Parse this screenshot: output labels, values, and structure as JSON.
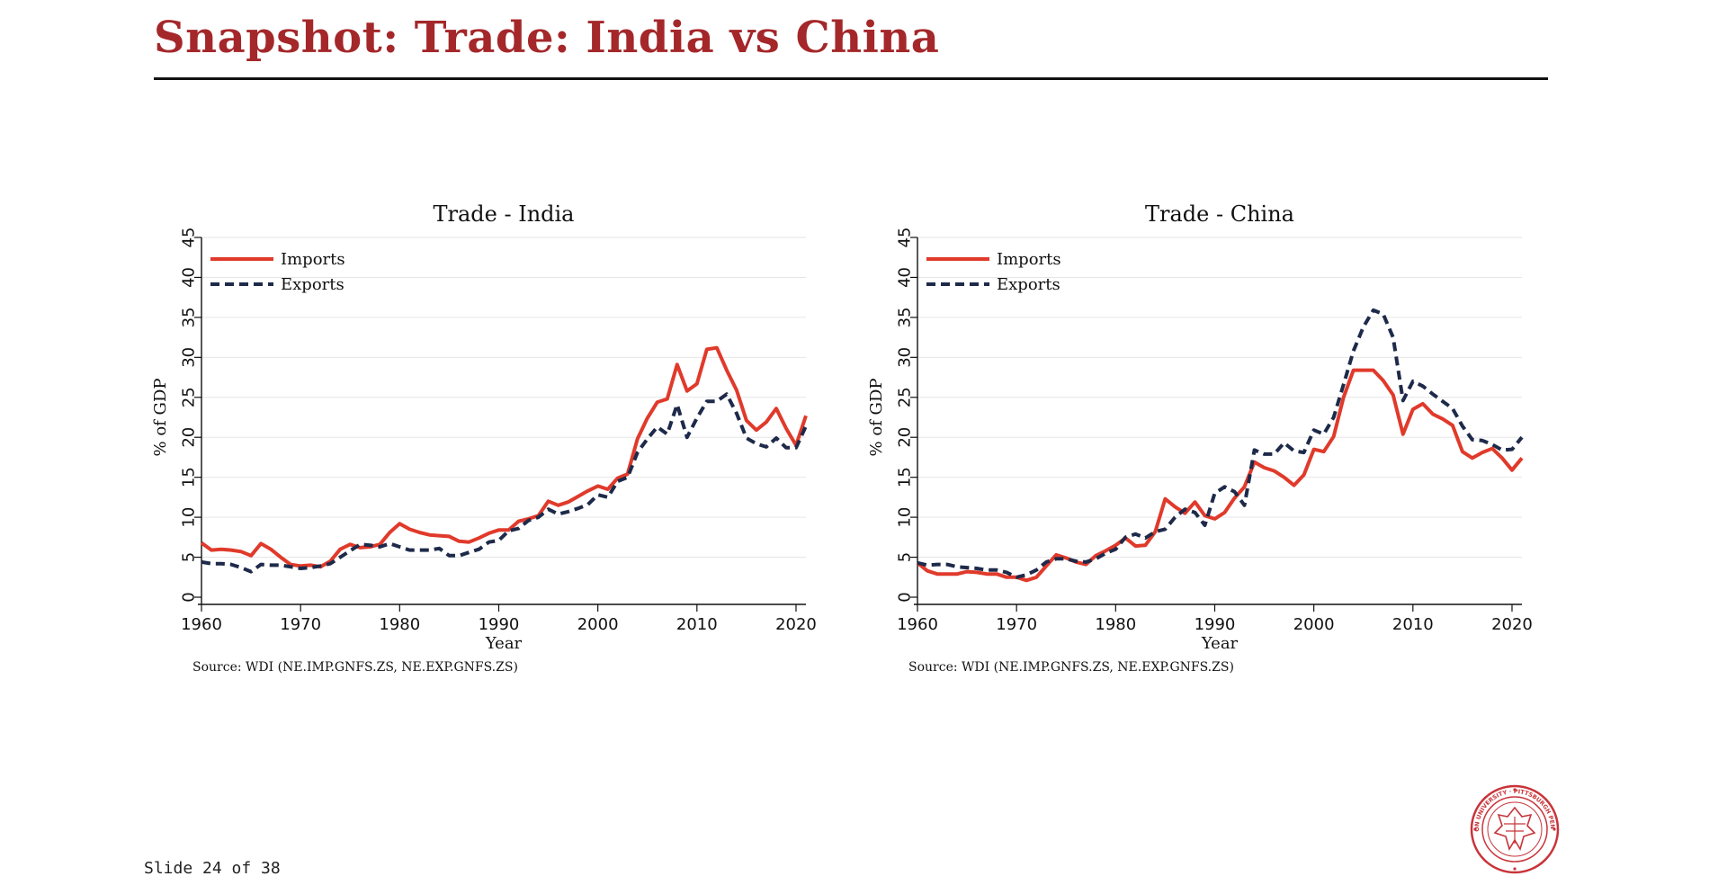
{
  "slide": {
    "title": "Snapshot: Trade: India vs China",
    "footer": "Slide 24 of 38"
  },
  "colors": {
    "title": "#a4272a",
    "imports": "#e03a2b",
    "exports": "#1e2a4a",
    "grid": "#e6e6e6",
    "seal": "#c8343a"
  },
  "seal": {
    "text": "CARNEGIE MELLON UNIVERSITY · PITTSBURGH PENNSYLVANIA 1900"
  },
  "chart_data": [
    {
      "type": "line",
      "title": "Trade - India",
      "xlabel": "Year",
      "ylabel": "% of GDP",
      "source": "Source: WDI (NE.IMP.GNFS.ZS, NE.EXP.GNFS.ZS)",
      "xlim": [
        1960,
        2021
      ],
      "ylim": [
        0,
        45
      ],
      "xticks": [
        1960,
        1970,
        1980,
        1990,
        2000,
        2010,
        2020
      ],
      "yticks": [
        0,
        5,
        10,
        15,
        20,
        25,
        30,
        35,
        40,
        45
      ],
      "grid": true,
      "legend": "top-left",
      "x": [
        1960,
        1961,
        1962,
        1963,
        1964,
        1965,
        1966,
        1967,
        1968,
        1969,
        1970,
        1971,
        1972,
        1973,
        1974,
        1975,
        1976,
        1977,
        1978,
        1979,
        1980,
        1981,
        1982,
        1983,
        1984,
        1985,
        1986,
        1987,
        1988,
        1989,
        1990,
        1991,
        1992,
        1993,
        1994,
        1995,
        1996,
        1997,
        1998,
        1999,
        2000,
        2001,
        2002,
        2003,
        2004,
        2005,
        2006,
        2007,
        2008,
        2009,
        2010,
        2011,
        2012,
        2013,
        2014,
        2015,
        2016,
        2017,
        2018,
        2019,
        2020,
        2021
      ],
      "series": [
        {
          "name": "Imports",
          "style": "solid",
          "values": [
            6.8,
            5.9,
            6.0,
            5.9,
            5.7,
            5.2,
            6.7,
            6.0,
            5.0,
            4.1,
            3.9,
            4.0,
            3.8,
            4.5,
            6.0,
            6.6,
            6.2,
            6.3,
            6.6,
            8.1,
            9.2,
            8.5,
            8.1,
            7.8,
            7.7,
            7.6,
            7.0,
            6.9,
            7.4,
            8.0,
            8.4,
            8.4,
            9.5,
            9.8,
            10.2,
            12.0,
            11.5,
            11.9,
            12.6,
            13.3,
            13.9,
            13.5,
            14.9,
            15.4,
            19.8,
            22.4,
            24.4,
            24.8,
            29.1,
            25.8,
            26.7,
            31.0,
            31.2,
            28.4,
            25.9,
            22.1,
            20.9,
            21.9,
            23.6,
            21.1,
            19.0,
            22.7
          ]
        },
        {
          "name": "Exports",
          "style": "dashed",
          "values": [
            4.4,
            4.2,
            4.2,
            4.1,
            3.7,
            3.2,
            4.1,
            4.0,
            4.0,
            3.8,
            3.6,
            3.7,
            3.9,
            4.2,
            5.0,
            5.8,
            6.6,
            6.5,
            6.3,
            6.7,
            6.3,
            5.9,
            5.9,
            5.9,
            6.1,
            5.2,
            5.2,
            5.6,
            6.0,
            6.9,
            7.1,
            8.3,
            8.6,
            9.6,
            10.0,
            11.0,
            10.4,
            10.7,
            11.1,
            11.6,
            12.8,
            12.5,
            14.5,
            15.0,
            18.1,
            19.8,
            21.3,
            20.4,
            24.1,
            20.0,
            22.4,
            24.5,
            24.5,
            25.4,
            23.0,
            19.9,
            19.2,
            18.8,
            19.9,
            18.7,
            18.7,
            21.4
          ]
        }
      ]
    },
    {
      "type": "line",
      "title": "Trade - China",
      "xlabel": "Year",
      "ylabel": "% of GDP",
      "source": "Source: WDI (NE.IMP.GNFS.ZS, NE.EXP.GNFS.ZS)",
      "xlim": [
        1960,
        2021
      ],
      "ylim": [
        0,
        45
      ],
      "xticks": [
        1960,
        1970,
        1980,
        1990,
        2000,
        2010,
        2020
      ],
      "yticks": [
        0,
        5,
        10,
        15,
        20,
        25,
        30,
        35,
        40,
        45
      ],
      "grid": true,
      "legend": "top-left",
      "x": [
        1960,
        1961,
        1962,
        1963,
        1964,
        1965,
        1966,
        1967,
        1968,
        1969,
        1970,
        1971,
        1972,
        1973,
        1974,
        1975,
        1976,
        1977,
        1978,
        1979,
        1980,
        1981,
        1982,
        1983,
        1984,
        1985,
        1986,
        1987,
        1988,
        1989,
        1990,
        1991,
        1992,
        1993,
        1994,
        1995,
        1996,
        1997,
        1998,
        1999,
        2000,
        2001,
        2002,
        2003,
        2004,
        2005,
        2006,
        2007,
        2008,
        2009,
        2010,
        2011,
        2012,
        2013,
        2014,
        2015,
        2016,
        2017,
        2018,
        2019,
        2020,
        2021
      ],
      "series": [
        {
          "name": "Imports",
          "style": "solid",
          "values": [
            4.3,
            3.3,
            2.9,
            2.9,
            2.9,
            3.2,
            3.1,
            2.9,
            2.9,
            2.5,
            2.5,
            2.1,
            2.5,
            3.9,
            5.3,
            4.9,
            4.4,
            4.1,
            5.2,
            5.8,
            6.5,
            7.4,
            6.4,
            6.5,
            8.2,
            12.3,
            11.3,
            10.5,
            11.9,
            10.2,
            9.8,
            10.6,
            12.4,
            13.8,
            16.9,
            16.2,
            15.8,
            15.0,
            14.0,
            15.3,
            18.5,
            18.2,
            20.1,
            25.0,
            28.4,
            28.4,
            28.4,
            27.1,
            25.3,
            20.4,
            23.5,
            24.2,
            22.9,
            22.3,
            21.5,
            18.2,
            17.4,
            18.1,
            18.6,
            17.4,
            15.9,
            17.4
          ]
        },
        {
          "name": "Exports",
          "style": "dashed",
          "values": [
            4.3,
            4.0,
            4.1,
            4.1,
            3.8,
            3.7,
            3.6,
            3.4,
            3.4,
            3.1,
            2.5,
            2.8,
            3.4,
            4.4,
            4.8,
            4.8,
            4.5,
            4.4,
            4.8,
            5.5,
            6.0,
            7.5,
            7.9,
            7.4,
            8.2,
            8.5,
            10.0,
            11.0,
            10.6,
            9.0,
            13.0,
            13.8,
            13.2,
            11.5,
            18.4,
            17.9,
            17.9,
            19.3,
            18.3,
            18.1,
            20.9,
            20.4,
            22.5,
            26.6,
            30.8,
            33.8,
            35.9,
            35.4,
            32.5,
            24.6,
            27.0,
            26.4,
            25.4,
            24.5,
            23.6,
            21.4,
            19.7,
            19.6,
            19.1,
            18.4,
            18.5,
            20.0
          ]
        }
      ]
    }
  ]
}
